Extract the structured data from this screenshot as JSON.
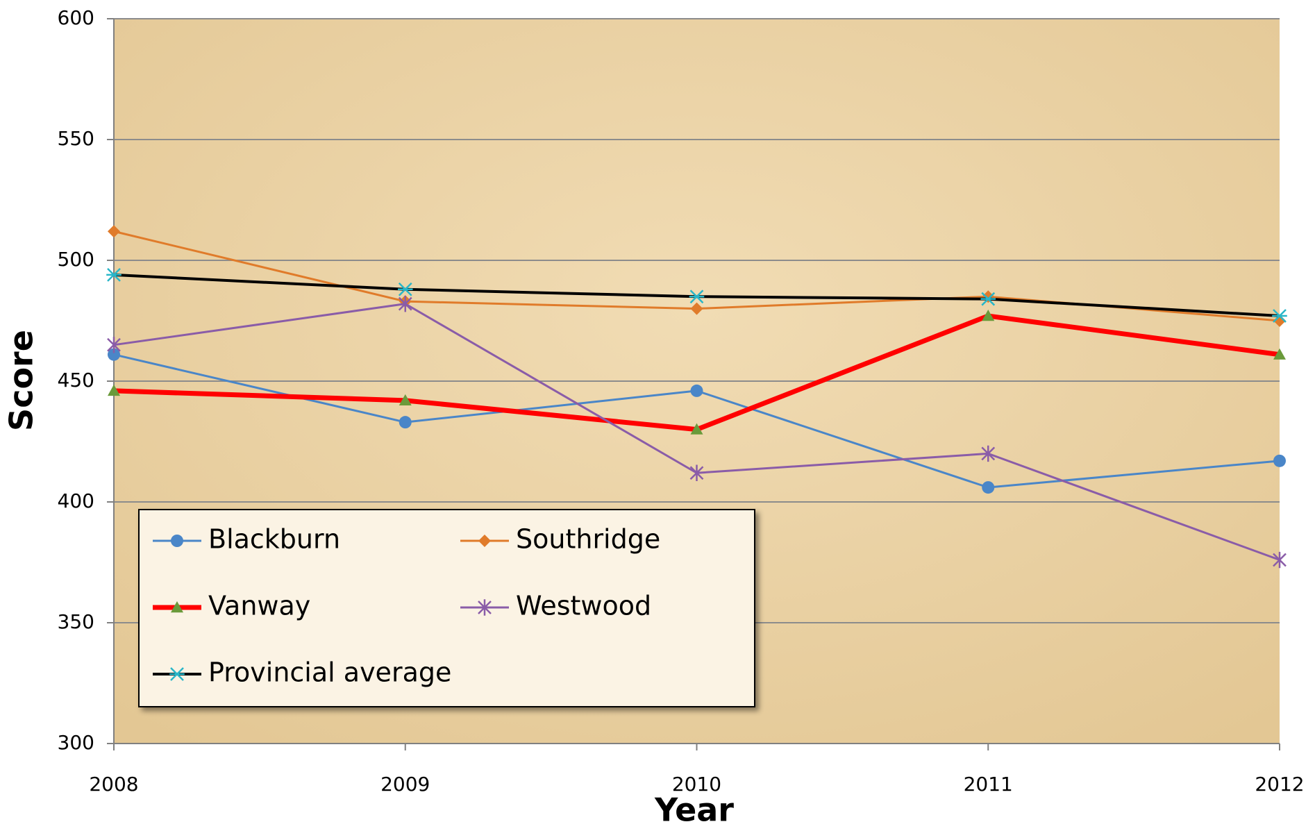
{
  "chart_data": {
    "type": "line",
    "x_label": "Year",
    "y_label": "Score",
    "categories": [
      "2008",
      "2009",
      "2010",
      "2011",
      "2012"
    ],
    "ylim": [
      300,
      600
    ],
    "yticks": [
      300,
      350,
      400,
      450,
      500,
      550,
      600
    ],
    "grid": true,
    "series": [
      {
        "name": "Blackburn",
        "color": "#4a86c8",
        "marker": "circle",
        "marker_color": "#4a86c8",
        "line_width": 3,
        "values": [
          461,
          433,
          446,
          406,
          417
        ]
      },
      {
        "name": "Southridge",
        "color": "#e07b2a",
        "marker": "diamond",
        "marker_color": "#e07b2a",
        "line_width": 3,
        "values": [
          512,
          483,
          480,
          485,
          475
        ]
      },
      {
        "name": "Vanway",
        "color": "#ff0000",
        "marker": "triangle",
        "marker_color": "#6a9a3a",
        "line_width": 7,
        "values": [
          446,
          442,
          430,
          477,
          461
        ]
      },
      {
        "name": "Westwood",
        "color": "#8a5ca8",
        "marker": "star",
        "marker_color": "#8a5ca8",
        "line_width": 3,
        "values": [
          465,
          482,
          412,
          420,
          376
        ]
      },
      {
        "name": "Provincial average",
        "color": "#000000",
        "marker": "asterisk",
        "marker_color": "#29b6c8",
        "line_width": 4,
        "values": [
          494,
          488,
          485,
          484,
          477
        ]
      }
    ]
  }
}
